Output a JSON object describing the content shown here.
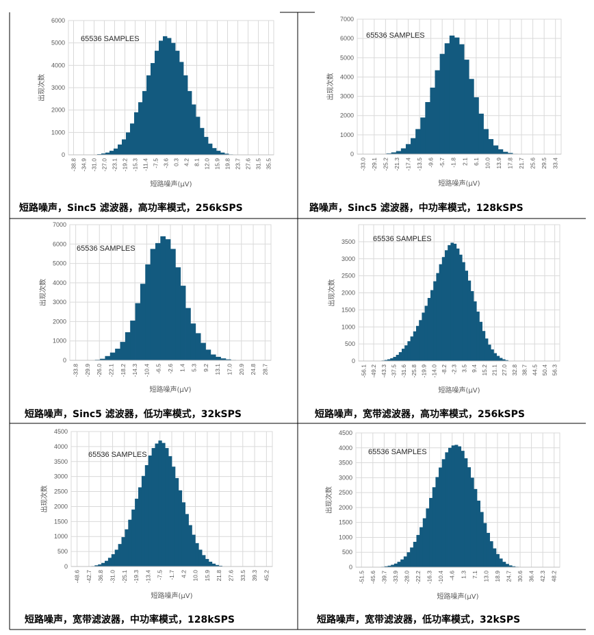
{
  "colors": {
    "bar": "#135a7f",
    "grid": "#d9d9d9",
    "axis_text": "#595959",
    "border": "#000000"
  },
  "panels": [
    {
      "caption": "短路噪声，Sinc5 滤波器，高功率模式，256kSPS",
      "chart_data": {
        "type": "bar",
        "annotation": "65536 SAMPLES",
        "xlabel": "短路噪声(μV)",
        "ylabel": "出现次数",
        "ylim": [
          0,
          6000
        ],
        "yticks": [
          0,
          1000,
          2000,
          3000,
          4000,
          5000,
          6000
        ],
        "xticks": [
          "-38.8",
          "-34.9",
          "-31.0",
          "-27.0",
          "-23.1",
          "-19.2",
          "-15.3",
          "-11.4",
          "-7.5",
          "-3.6",
          "0.3",
          "4.2",
          "8.1",
          "12.0",
          "15.9",
          "19.8",
          "23.7",
          "27.6",
          "31.5",
          "35.5"
        ],
        "values": [
          0,
          0,
          0,
          0,
          2,
          5,
          10,
          30,
          60,
          100,
          180,
          280,
          460,
          690,
          1000,
          1400,
          1900,
          2350,
          2850,
          3550,
          4100,
          4650,
          5100,
          5300,
          5220,
          5000,
          4650,
          4150,
          3550,
          2850,
          2250,
          1700,
          1200,
          800,
          500,
          300,
          180,
          100,
          50,
          20,
          8,
          3,
          1,
          0,
          0,
          0,
          0,
          0,
          0,
          0
        ]
      }
    },
    {
      "caption": "路噪声，Sinc5 滤波器，中功率模式，128kSPS",
      "chart_data": {
        "type": "bar",
        "annotation": "65536 SAMPLES",
        "xlabel": "短路噪声(μV)",
        "ylabel": "出现次数",
        "ylim": [
          0,
          7000
        ],
        "yticks": [
          0,
          1000,
          2000,
          3000,
          4000,
          5000,
          6000,
          7000
        ],
        "xticks": [
          "-33.0",
          "-29.1",
          "-25.2",
          "-21.3",
          "-17.4",
          "-13.5",
          "-9.6",
          "-5.7",
          "-1.8",
          "2.1",
          "6.1",
          "10.0",
          "13.9",
          "17.8",
          "21.7",
          "25.6",
          "29.5",
          "33.4"
        ],
        "values": [
          0,
          0,
          0,
          2,
          5,
          15,
          40,
          90,
          160,
          300,
          520,
          830,
          1300,
          1900,
          2700,
          3450,
          4350,
          5200,
          5750,
          6150,
          6050,
          5700,
          4900,
          3900,
          2950,
          2100,
          1300,
          780,
          450,
          250,
          120,
          60,
          20,
          10,
          5,
          2,
          1,
          0,
          0,
          0,
          0,
          0
        ]
      }
    },
    {
      "caption": "短路噪声，Sinc5 滤波器，低功率模式，32kSPS",
      "chart_data": {
        "type": "bar",
        "annotation": "65536 SAMPLES",
        "xlabel": "短路噪声(μV)",
        "ylabel": "出现次数",
        "ylim": [
          0,
          7000
        ],
        "yticks": [
          0,
          1000,
          2000,
          3000,
          4000,
          5000,
          6000,
          7000
        ],
        "xticks": [
          "-33.8",
          "-29.9",
          "-26.0",
          "-22.1",
          "-18.2",
          "-14.3",
          "-10.4",
          "-6.5",
          "-2.6",
          "1.4",
          "5.3",
          "9.2",
          "13.1",
          "17.0",
          "20.9",
          "24.8",
          "28.7"
        ],
        "values": [
          0,
          0,
          0,
          0,
          10,
          30,
          80,
          220,
          400,
          600,
          950,
          1450,
          2050,
          2950,
          3950,
          4950,
          5750,
          6050,
          6400,
          6250,
          5750,
          4800,
          3850,
          2700,
          1900,
          1400,
          900,
          550,
          300,
          180,
          100,
          50,
          20,
          10,
          5,
          0,
          0,
          0,
          0,
          0
        ]
      }
    },
    {
      "caption": "短路噪声，宽带滤波器，高功率模式，256kSPS",
      "chart_data": {
        "type": "bar",
        "annotation": "65536 SAMPLES",
        "xlabel": "短路噪声(μV)",
        "ylabel": "出现次数",
        "ylim": [
          0,
          4000
        ],
        "yticks": [
          0,
          500,
          1000,
          1500,
          2000,
          2500,
          3000,
          3500
        ],
        "xticks": [
          "-56.1",
          "-49.2",
          "-43.3",
          "-37.5",
          "-31.6",
          "-25.8",
          "-19.9",
          "-14.0",
          "-8.2",
          "-2.3",
          "3.5",
          "9.4",
          "15.2",
          "21.1",
          "27.0",
          "32.8",
          "38.7",
          "44.5",
          "50.4",
          "56.3"
        ],
        "values": [
          0,
          0,
          0,
          0,
          0,
          0,
          2,
          5,
          15,
          30,
          50,
          80,
          120,
          180,
          260,
          360,
          460,
          580,
          720,
          870,
          1030,
          1200,
          1420,
          1620,
          1850,
          2080,
          2340,
          2580,
          2840,
          3050,
          3250,
          3400,
          3470,
          3440,
          3300,
          3120,
          2900,
          2650,
          2360,
          2050,
          1750,
          1450,
          1150,
          880,
          660,
          480,
          340,
          230,
          150,
          90,
          50,
          25,
          10,
          5,
          2,
          0,
          0,
          0,
          0,
          0,
          0,
          0,
          0,
          0,
          0,
          0,
          0,
          0,
          0,
          0
        ]
      }
    },
    {
      "caption": "短路噪声，宽带滤波器，中功率模式，128kSPS",
      "chart_data": {
        "type": "bar",
        "annotation": "65536 SAMPLES",
        "xlabel": "短路噪声(μV)",
        "ylabel": "出现次数",
        "ylim": [
          0,
          4500
        ],
        "yticks": [
          0,
          500,
          1000,
          1500,
          2000,
          2500,
          3000,
          3500,
          4000,
          4500
        ],
        "xticks": [
          "-48.6",
          "-42.7",
          "-36.8",
          "-31.0",
          "-25.1",
          "-19.3",
          "-13.4",
          "-7.5",
          "-1.7",
          "4.2",
          "10.0",
          "15.9",
          "21.8",
          "27.6",
          "33.5",
          "39.3",
          "45.2"
        ],
        "values": [
          0,
          0,
          0,
          0,
          0,
          5,
          15,
          40,
          70,
          120,
          190,
          290,
          410,
          560,
          750,
          980,
          1240,
          1560,
          1900,
          2260,
          2640,
          3020,
          3380,
          3700,
          3950,
          4100,
          4200,
          4120,
          3950,
          3680,
          3330,
          2950,
          2540,
          2140,
          1750,
          1380,
          1060,
          780,
          560,
          380,
          250,
          160,
          95,
          50,
          25,
          10,
          5,
          2,
          0,
          0,
          0,
          0,
          0,
          0,
          0,
          0,
          0,
          0,
          0,
          0
        ]
      }
    },
    {
      "caption": "短路噪声，宽带滤波器，低功率模式，32kSPS",
      "chart_data": {
        "type": "bar",
        "annotation": "65536 SAMPLES",
        "xlabel": "短路噪声(μV)",
        "ylabel": "出现次数",
        "ylim": [
          0,
          4500
        ],
        "yticks": [
          0,
          500,
          1000,
          1500,
          2000,
          2500,
          3000,
          3500,
          4000,
          4500
        ],
        "xticks": [
          "-51.5",
          "-45.6",
          "-39.7",
          "-33.9",
          "-28.0",
          "-22.2",
          "-16.3",
          "-10.4",
          "-4.6",
          "1.3",
          "7.1",
          "13.0",
          "18.9",
          "24.7",
          "30.6",
          "36.4",
          "42.3",
          "48.2"
        ],
        "values": [
          0,
          0,
          0,
          0,
          0,
          0,
          2,
          5,
          15,
          30,
          50,
          80,
          120,
          180,
          260,
          360,
          500,
          660,
          850,
          1080,
          1340,
          1640,
          1970,
          2320,
          2680,
          3020,
          3340,
          3620,
          3850,
          4000,
          4080,
          4100,
          4050,
          3900,
          3650,
          3350,
          3000,
          2620,
          2230,
          1850,
          1480,
          1150,
          870,
          630,
          440,
          290,
          180,
          110,
          60,
          30,
          15,
          5,
          2,
          0,
          0,
          0,
          0,
          0,
          0,
          0,
          0,
          0,
          0,
          0
        ]
      }
    }
  ]
}
